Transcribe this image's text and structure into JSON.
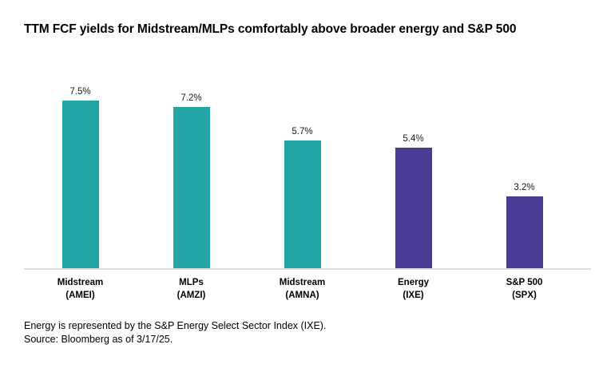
{
  "title": "TTM FCF yields for Midstream/MLPs comfortably above broader energy and S&P 500",
  "chart_data": {
    "type": "bar",
    "title": "TTM FCF yields for Midstream/MLPs comfortably above broader energy and S&P 500",
    "categories": [
      "Midstream (AMEI)",
      "MLPs (AMZI)",
      "Midstream (AMNA)",
      "Energy (IXE)",
      "S&P 500 (SPX)"
    ],
    "tick_lines": [
      [
        "Midstream",
        "(AMEI)"
      ],
      [
        "MLPs",
        "(AMZI)"
      ],
      [
        "Midstream",
        "(AMNA)"
      ],
      [
        "Energy",
        "(IXE)"
      ],
      [
        "S&P 500",
        "(SPX)"
      ]
    ],
    "values": [
      7.5,
      7.2,
      5.7,
      5.4,
      3.2
    ],
    "value_labels": [
      "7.5%",
      "7.2%",
      "5.7%",
      "5.4%",
      "3.2%"
    ],
    "bar_colors": [
      "#23A5A6",
      "#23A5A6",
      "#23A5A6",
      "#473B94",
      "#473B94"
    ],
    "colors": {
      "teal": "#23A5A6",
      "purple": "#473B94",
      "baseline": "#DCDCDC"
    },
    "xlabel": "",
    "ylabel": "",
    "ylim": [
      0,
      8.3
    ],
    "grid": false,
    "legend": "none"
  },
  "footer": {
    "line1": "Energy is represented by the S&P Energy Select Sector Index (IXE).",
    "line2": "Source: Bloomberg as of 3/17/25."
  }
}
